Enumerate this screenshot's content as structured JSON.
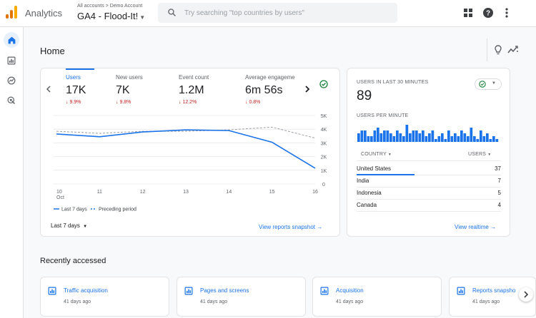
{
  "header": {
    "app_name": "Analytics",
    "breadcrumb": "All accounts > Demo Account",
    "property": "GA4 - Flood-It!",
    "search_placeholder": "Try searching \"top countries by users\""
  },
  "icons": {
    "apps": "apps-grid-icon",
    "help": "help-icon",
    "more": "more-vert-icon",
    "nav": [
      "home-icon",
      "reports-icon",
      "explore-icon",
      "advertising-icon"
    ],
    "insights": "lightbulb-icon",
    "trends": "trend-icon"
  },
  "page": {
    "title": "Home"
  },
  "overview": {
    "metrics": [
      {
        "label": "Users",
        "value": "17K",
        "change": "↓ 9.9%"
      },
      {
        "label": "New users",
        "value": "7K",
        "change": "↓ 9.8%"
      },
      {
        "label": "Event count",
        "value": "1.2M",
        "change": "↓ 12.2%"
      },
      {
        "label": "Average engageme",
        "value": "6m 56s",
        "change": "↓ 0.8%"
      }
    ],
    "date_range": "Last 7 days",
    "link": "View reports snapshot",
    "legend": [
      "Last 7 days",
      "Preceding period"
    ]
  },
  "chart_data": {
    "type": "line",
    "x": [
      "10",
      "11",
      "12",
      "13",
      "14",
      "15",
      "16"
    ],
    "x_sublabel": "Oct",
    "y_ticks": [
      "5K",
      "4K",
      "3K",
      "2K",
      "1K",
      "0"
    ],
    "ylim": [
      0,
      5000
    ],
    "series": [
      {
        "name": "Last 7 days",
        "values": [
          3650,
          3450,
          3800,
          3950,
          3900,
          3050,
          1150
        ],
        "style": "solid",
        "color": "#1a73e8"
      },
      {
        "name": "Preceding period",
        "values": [
          3850,
          3700,
          3850,
          3850,
          3950,
          4150,
          3350
        ],
        "style": "dashed",
        "color": "#9aa0a6"
      }
    ]
  },
  "realtime": {
    "title": "USERS IN LAST 30 MINUTES",
    "value": "89",
    "per_minute_label": "USERS PER MINUTE",
    "per_minute": [
      3,
      4,
      4,
      2,
      2,
      4,
      5,
      3,
      4,
      4,
      3,
      2,
      4,
      3,
      2,
      6,
      3,
      4,
      4,
      3,
      4,
      2,
      3,
      4,
      1,
      2,
      3,
      1,
      4,
      2,
      3,
      2,
      4,
      3,
      2,
      5,
      2,
      1,
      4,
      2,
      3,
      1,
      2,
      1
    ],
    "col_country": "COUNTRY",
    "col_users": "USERS",
    "countries": [
      {
        "name": "United States",
        "users": "37",
        "share": 0.4
      },
      {
        "name": "India",
        "users": "7",
        "share": 0
      },
      {
        "name": "Indonesia",
        "users": "5",
        "share": 0
      },
      {
        "name": "Canada",
        "users": "4",
        "share": 0
      }
    ],
    "link": "View realtime"
  },
  "recent": {
    "title": "Recently accessed",
    "items": [
      {
        "title": "Traffic acquisition",
        "ago": "41 days ago"
      },
      {
        "title": "Pages and screens",
        "ago": "41 days ago"
      },
      {
        "title": "Acquisition",
        "ago": "41 days ago"
      },
      {
        "title": "Reports snapsho",
        "ago": "41 days ago"
      }
    ]
  },
  "colors": {
    "accent": "#1a73e8",
    "negative": "#c5221f",
    "positive": "#188038"
  }
}
